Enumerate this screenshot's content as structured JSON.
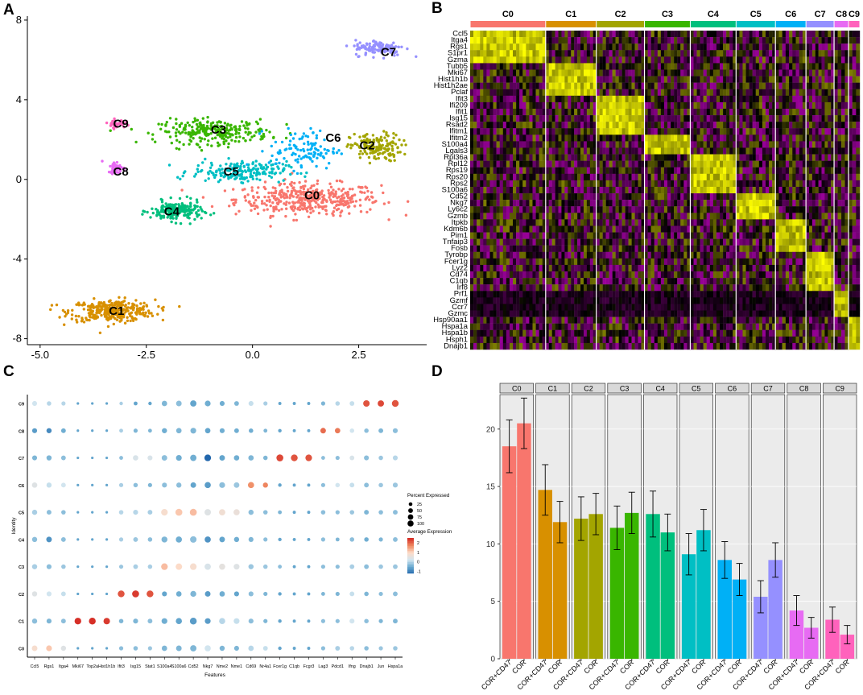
{
  "panel_labels": [
    "A",
    "B",
    "C",
    "D"
  ],
  "colors": {
    "C0": "#F8766D",
    "C1": "#D89000",
    "C2": "#A3A500",
    "C3": "#39B600",
    "C4": "#00BF7D",
    "C5": "#00BFC4",
    "C6": "#00B0F6",
    "C7": "#9590FF",
    "C8": "#E76BF3",
    "C9": "#FF62BC"
  },
  "chart_data": [
    {
      "id": "A",
      "type": "scatter",
      "title": "",
      "xlim": [
        -5.3,
        4.1
      ],
      "ylim": [
        -8.3,
        8.2
      ],
      "xticks": [
        -5.0,
        -2.5,
        0.0,
        2.5
      ],
      "xtick_labels": [
        "-5.0",
        "-2.5",
        "0.0",
        "2.5"
      ],
      "yticks": [
        8,
        4,
        0,
        -4,
        -8
      ],
      "ytick_labels": [
        "8",
        "4",
        "0",
        "-4",
        "-8"
      ],
      "clusters": [
        {
          "name": "C0",
          "label_x": 1.4,
          "label_y": -0.8,
          "center": [
            1.3,
            -1.0
          ],
          "spread": [
            1.7,
            0.8
          ],
          "n": 420
        },
        {
          "name": "C1",
          "label_x": -3.2,
          "label_y": -6.6,
          "center": [
            -3.3,
            -6.6
          ],
          "spread": [
            1.0,
            0.55
          ],
          "n": 330
        },
        {
          "name": "C2",
          "label_x": 2.7,
          "label_y": 1.7,
          "center": [
            2.9,
            1.6
          ],
          "spread": [
            0.6,
            0.7
          ],
          "n": 160
        },
        {
          "name": "C3",
          "label_x": -0.8,
          "label_y": 2.5,
          "center": [
            -0.9,
            2.4
          ],
          "spread": [
            1.3,
            0.6
          ],
          "n": 260
        },
        {
          "name": "C4",
          "label_x": -1.9,
          "label_y": -1.6,
          "center": [
            -1.8,
            -1.6
          ],
          "spread": [
            0.6,
            0.5
          ],
          "n": 200
        },
        {
          "name": "C5",
          "label_x": -0.5,
          "label_y": 0.4,
          "center": [
            -0.3,
            0.4
          ],
          "spread": [
            1.1,
            0.5
          ],
          "n": 200
        },
        {
          "name": "C6",
          "label_x": 1.9,
          "label_y": 2.1,
          "center": [
            1.2,
            1.5
          ],
          "spread": [
            0.8,
            1.0
          ],
          "n": 110
        },
        {
          "name": "C7",
          "label_x": 3.2,
          "label_y": 6.4,
          "center": [
            3.0,
            6.6
          ],
          "spread": [
            0.6,
            0.4
          ],
          "n": 120
        },
        {
          "name": "C8",
          "label_x": -3.1,
          "label_y": 0.4,
          "center": [
            -3.2,
            0.6
          ],
          "spread": [
            0.2,
            0.3
          ],
          "n": 50
        },
        {
          "name": "C9",
          "label_x": -3.1,
          "label_y": 2.8,
          "center": [
            -3.2,
            2.8
          ],
          "spread": [
            0.2,
            0.2
          ],
          "n": 40
        }
      ]
    },
    {
      "id": "B",
      "type": "heatmap",
      "clusters": [
        "C0",
        "C1",
        "C2",
        "C3",
        "C4",
        "C5",
        "C6",
        "C7",
        "C8",
        "C9"
      ],
      "cluster_widths": [
        94,
        63,
        60,
        57,
        57,
        49,
        38,
        35,
        18,
        14
      ],
      "genes": [
        "Ccl5",
        "Itga4",
        "Rgs1",
        "S1pr1",
        "Gzma",
        "Tubb5",
        "Mki67",
        "Hist1h1b",
        "Hist1h2ae",
        "Pclaf",
        "Ifit3",
        "Ifi209",
        "Ifit1",
        "Isg15",
        "Rsad2",
        "Ifitm1",
        "Ifitm2",
        "S100a4",
        "Lgals3",
        "Rpl36a",
        "Rpl12",
        "Rps19",
        "Rps20",
        "Rps2",
        "S100a6",
        "Cd52",
        "Nkg7",
        "Ly6c2",
        "Gzmb",
        "Itpkb",
        "Kdm6b",
        "Pim1",
        "Tnfaip3",
        "Fosb",
        "Tyrobp",
        "Fcer1g",
        "Lyz2",
        "Cd74",
        "C1qb",
        "Irf8",
        "Prf1",
        "Gzmf",
        "Ccr7",
        "Gzmc",
        "Hsp90aa1",
        "Hspa1a",
        "Hspa1b",
        "Hsph1",
        "Dnajb1"
      ],
      "marker_blocks": [
        {
          "cluster": "C0",
          "genes": [
            0,
            4
          ]
        },
        {
          "cluster": "C1",
          "genes": [
            5,
            9
          ]
        },
        {
          "cluster": "C2",
          "genes": [
            10,
            15
          ]
        },
        {
          "cluster": "C3",
          "genes": [
            16,
            18
          ]
        },
        {
          "cluster": "C4",
          "genes": [
            19,
            24
          ]
        },
        {
          "cluster": "C5",
          "genes": [
            25,
            28
          ]
        },
        {
          "cluster": "C6",
          "genes": [
            29,
            33
          ]
        },
        {
          "cluster": "C7",
          "genes": [
            34,
            39
          ]
        },
        {
          "cluster": "C8",
          "genes": [
            40,
            43
          ]
        },
        {
          "cluster": "C9",
          "genes": [
            44,
            48
          ]
        }
      ],
      "color_low": "#FF00FF",
      "color_mid": "#000000",
      "color_high": "#FFFF00"
    },
    {
      "id": "C",
      "type": "scatter",
      "subtype": "dot plot",
      "xlabel": "Features",
      "ylabel": "Identity",
      "features": [
        "Ccl5",
        "Rgs1",
        "Itga4",
        "Mki67",
        "Top2a",
        "Hist1h1b",
        "Ifit3",
        "Isg15",
        "Stat1",
        "S100a4",
        "S100a6",
        "Cd52",
        "Nkg7",
        "Nme2",
        "Nme1",
        "Cd69",
        "Nr4a1",
        "Fcer1g",
        "C1qb",
        "Fcgr3",
        "Lag3",
        "Pdcd1",
        "Ifng",
        "Dnajb1",
        "Jun",
        "Hspa1a"
      ],
      "identities": [
        "C9",
        "C8",
        "C7",
        "C6",
        "C5",
        "C4",
        "C3",
        "C2",
        "C1",
        "C0"
      ],
      "legend": {
        "size_title": "Percent Expressed",
        "size_values": [
          "25",
          "50",
          "75",
          "100"
        ],
        "color_title": "Average Expression",
        "color_ticks": [
          "2",
          "1",
          "0",
          "-1"
        ]
      },
      "average_expression": [
        [
          0.3,
          0.1,
          0.1,
          -0.5,
          -0.5,
          -0.5,
          0.0,
          -0.5,
          -0.5,
          -0.3,
          -0.2,
          -0.5,
          -0.4,
          -0.4,
          -0.3,
          0.2,
          0.0,
          -0.5,
          -0.5,
          -0.5,
          -0.3,
          0.1,
          0.2,
          2.2,
          2.3,
          2.2
        ],
        [
          -0.6,
          -0.8,
          -0.4,
          -0.5,
          -0.5,
          -0.5,
          0.0,
          -0.3,
          -0.3,
          -0.4,
          -0.3,
          -0.3,
          -0.5,
          -0.4,
          -0.4,
          -0.4,
          -0.3,
          -0.5,
          -0.5,
          -0.5,
          2.0,
          1.9,
          0.3,
          -0.2,
          -0.3,
          -0.2
        ],
        [
          -0.3,
          -0.3,
          -0.2,
          -0.5,
          -0.5,
          -0.5,
          -0.2,
          0.4,
          0.4,
          -0.2,
          -0.4,
          -0.4,
          -1.2,
          -0.5,
          -0.4,
          -0.3,
          -0.3,
          2.3,
          2.2,
          2.2,
          -0.2,
          -0.2,
          0.4,
          -0.2,
          -0.1,
          0.1
        ],
        [
          0.5,
          0.2,
          0.3,
          -0.5,
          -0.5,
          -0.5,
          0.0,
          -0.2,
          -0.3,
          -0.2,
          -0.2,
          -0.5,
          -0.6,
          -0.2,
          -0.1,
          1.7,
          1.8,
          -0.5,
          -0.5,
          -0.5,
          -0.2,
          0.3,
          0.2,
          -0.2,
          -0.1,
          -0.1
        ],
        [
          0.0,
          -0.2,
          -0.2,
          -0.5,
          -0.5,
          -0.5,
          0.1,
          0.1,
          0.0,
          0.9,
          1.2,
          1.3,
          0.5,
          0.8,
          0.7,
          -0.2,
          -0.2,
          -0.3,
          -0.5,
          -0.5,
          -0.2,
          -0.2,
          -0.1,
          -0.3,
          -0.2,
          -0.2
        ],
        [
          -0.2,
          -0.7,
          -0.2,
          -0.5,
          -0.5,
          -0.5,
          0.0,
          -0.1,
          -0.2,
          -0.3,
          -0.4,
          -0.2,
          -0.7,
          -0.5,
          -0.4,
          -0.3,
          -0.2,
          -0.5,
          -0.5,
          -0.5,
          -0.2,
          -0.3,
          -0.2,
          -0.4,
          -0.3,
          -0.2
        ],
        [
          0.0,
          -0.2,
          -0.1,
          -0.5,
          -0.5,
          -0.5,
          -0.1,
          0.0,
          0.0,
          1.3,
          1.0,
          0.9,
          0.4,
          0.6,
          0.5,
          -0.1,
          -0.1,
          -0.2,
          -0.5,
          -0.5,
          -0.2,
          -0.2,
          0.0,
          -0.2,
          -0.1,
          -0.1
        ],
        [
          0.5,
          0.3,
          0.2,
          -0.5,
          -0.5,
          -0.5,
          2.2,
          2.4,
          2.2,
          -0.5,
          -0.4,
          -0.3,
          -0.6,
          -0.4,
          -0.5,
          -0.2,
          -0.3,
          -0.5,
          -0.5,
          -0.5,
          -0.3,
          -0.3,
          0.2,
          -0.3,
          -0.2,
          -0.2
        ],
        [
          -0.2,
          -0.3,
          -0.2,
          2.5,
          2.5,
          2.4,
          -0.3,
          -0.3,
          -0.2,
          -0.4,
          -0.5,
          -0.6,
          -0.6,
          0.1,
          0.2,
          -0.2,
          -0.3,
          -0.5,
          -0.5,
          -0.5,
          -0.2,
          -0.2,
          0.3,
          -0.2,
          -0.3,
          -0.3
        ],
        [
          0.9,
          1.2,
          0.5,
          -0.5,
          -0.5,
          -0.5,
          -0.2,
          -0.2,
          -0.1,
          -0.3,
          -0.3,
          -0.3,
          0.3,
          -0.3,
          -0.3,
          0.1,
          0.2,
          -0.5,
          -0.5,
          -0.5,
          -0.2,
          0.0,
          0.1,
          -0.2,
          -0.1,
          -0.1
        ]
      ],
      "percent_expressed": [
        [
          40,
          30,
          25,
          5,
          5,
          5,
          15,
          20,
          15,
          50,
          55,
          75,
          60,
          40,
          35,
          40,
          25,
          10,
          10,
          10,
          25,
          30,
          35,
          80,
          75,
          90
        ],
        [
          40,
          45,
          35,
          5,
          5,
          5,
          20,
          25,
          20,
          45,
          50,
          60,
          50,
          40,
          35,
          30,
          20,
          15,
          10,
          10,
          55,
          50,
          30,
          30,
          35,
          40
        ],
        [
          40,
          45,
          35,
          5,
          5,
          5,
          20,
          50,
          40,
          55,
          60,
          75,
          85,
          55,
          50,
          50,
          30,
          95,
          90,
          85,
          20,
          25,
          35,
          40,
          30,
          40
        ],
        [
          50,
          45,
          35,
          5,
          5,
          5,
          25,
          30,
          25,
          40,
          45,
          55,
          70,
          60,
          55,
          70,
          45,
          15,
          10,
          10,
          25,
          30,
          35,
          35,
          30,
          40
        ],
        [
          45,
          35,
          30,
          5,
          5,
          5,
          30,
          40,
          35,
          85,
          95,
          95,
          80,
          75,
          70,
          45,
          30,
          20,
          10,
          10,
          30,
          25,
          30,
          35,
          30,
          35
        ],
        [
          45,
          55,
          35,
          5,
          5,
          5,
          25,
          35,
          30,
          65,
          70,
          80,
          70,
          55,
          45,
          40,
          25,
          15,
          10,
          10,
          25,
          20,
          30,
          30,
          25,
          35
        ],
        [
          45,
          40,
          30,
          5,
          5,
          5,
          25,
          35,
          30,
          85,
          80,
          85,
          75,
          70,
          60,
          45,
          30,
          20,
          10,
          10,
          25,
          25,
          35,
          35,
          30,
          35
        ],
        [
          45,
          40,
          35,
          5,
          5,
          5,
          90,
          95,
          90,
          40,
          50,
          65,
          55,
          50,
          40,
          40,
          25,
          15,
          10,
          10,
          20,
          25,
          35,
          30,
          25,
          35
        ],
        [
          45,
          40,
          35,
          85,
          90,
          80,
          30,
          40,
          35,
          60,
          70,
          90,
          60,
          70,
          60,
          40,
          25,
          15,
          10,
          10,
          25,
          25,
          40,
          30,
          25,
          35
        ],
        [
          55,
          60,
          45,
          5,
          5,
          5,
          25,
          30,
          25,
          50,
          55,
          75,
          70,
          45,
          40,
          50,
          35,
          15,
          10,
          10,
          25,
          35,
          30,
          30,
          25,
          30
        ]
      ]
    },
    {
      "id": "D",
      "type": "bar",
      "facets": [
        "C0",
        "C1",
        "C2",
        "C3",
        "C4",
        "C5",
        "C6",
        "C7",
        "C8",
        "C9"
      ],
      "categories": [
        "COR+CD47",
        "COR"
      ],
      "ylim": [
        0,
        23
      ],
      "yticks": [
        0,
        5,
        10,
        15,
        20
      ],
      "ytick_labels": [
        "0",
        "5",
        "10",
        "15",
        "20"
      ],
      "values": [
        [
          18.5,
          20.5
        ],
        [
          14.7,
          11.9
        ],
        [
          12.2,
          12.6
        ],
        [
          11.4,
          12.7
        ],
        [
          12.6,
          11.0
        ],
        [
          9.1,
          11.2
        ],
        [
          8.6,
          6.9
        ],
        [
          5.4,
          8.6
        ],
        [
          4.2,
          2.7
        ],
        [
          3.4,
          2.1
        ]
      ],
      "errors": [
        [
          2.3,
          2.2
        ],
        [
          2.2,
          1.8
        ],
        [
          1.9,
          1.8
        ],
        [
          1.9,
          1.8
        ],
        [
          2.0,
          1.6
        ],
        [
          1.8,
          1.8
        ],
        [
          1.6,
          1.4
        ],
        [
          1.4,
          1.5
        ],
        [
          1.3,
          0.9
        ],
        [
          1.1,
          0.8
        ]
      ]
    }
  ]
}
